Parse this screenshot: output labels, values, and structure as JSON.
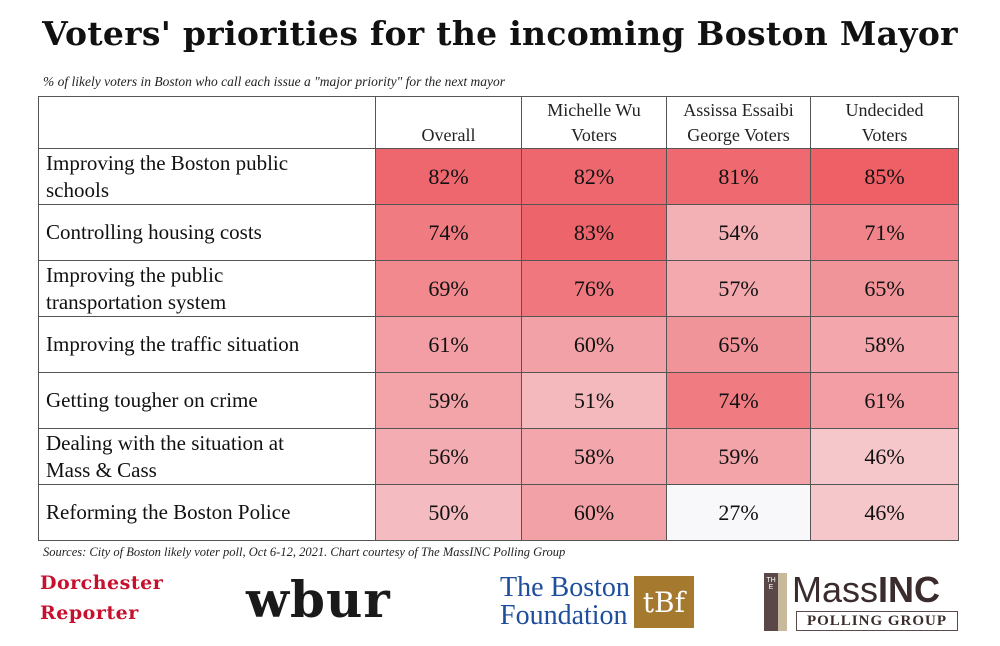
{
  "title": "Voters' priorities for the incoming Boston Mayor",
  "subtitle": "% of likely voters in Boston who call each issue a \"major priority\" for the next mayor",
  "chart_data": {
    "type": "table",
    "title": "Voters' priorities for the incoming Boston Mayor",
    "subtitle": "% of likely voters in Boston who call each issue a \"major priority\" for the next mayor",
    "columns": [
      {
        "line1": "",
        "line2": "Overall"
      },
      {
        "line1": "Michelle Wu",
        "line2": "Voters"
      },
      {
        "line1": "Assissa Essaibi",
        "line2": "George Voters"
      },
      {
        "line1": "Undecided",
        "line2": "Voters"
      }
    ],
    "rows": [
      {
        "label_line1": "Improving the Boston public",
        "label_line2": "schools",
        "values": [
          82,
          82,
          81,
          85
        ]
      },
      {
        "label_line1": "Controlling housing costs",
        "label_line2": "",
        "values": [
          74,
          83,
          54,
          71
        ]
      },
      {
        "label_line1": "Improving the public",
        "label_line2": "transportation system",
        "values": [
          69,
          76,
          57,
          65
        ]
      },
      {
        "label_line1": "Improving the traffic situation",
        "label_line2": "",
        "values": [
          61,
          60,
          65,
          58
        ]
      },
      {
        "label_line1": "Getting tougher on crime",
        "label_line2": "",
        "values": [
          59,
          51,
          74,
          61
        ]
      },
      {
        "label_line1": "Dealing with the situation at",
        "label_line2": "Mass & Cass",
        "values": [
          56,
          58,
          59,
          46
        ]
      },
      {
        "label_line1": "Reforming the Boston Police",
        "label_line2": "",
        "values": [
          50,
          60,
          27,
          46
        ]
      }
    ],
    "value_suffix": "%",
    "color_scale": {
      "low_value": 27,
      "high_value": 85,
      "low_color": "#f8f8fb",
      "high_color": "#ee5f66"
    }
  },
  "source": "Sources: City of Boston likely voter poll, Oct 6-12, 2021. Chart courtesy of The MassINC Polling Group",
  "logos": {
    "dorchester": {
      "line1": "Dorchester",
      "line2": "Reporter"
    },
    "wbur": "wbur",
    "boston_foundation": {
      "line1": "The Boston",
      "line2": "Foundation",
      "mark": "tBf"
    },
    "massinc": {
      "the": "THE",
      "name_a": "Mass",
      "name_b": "INC",
      "tagline": "POLLING GROUP"
    }
  }
}
